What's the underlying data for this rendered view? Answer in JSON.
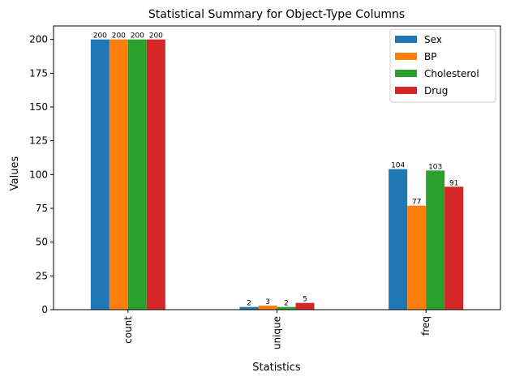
{
  "chart_data": {
    "type": "bar",
    "title": "Statistical Summary for Object-Type Columns",
    "xlabel": "Statistics",
    "ylabel": "Values",
    "categories": [
      "count",
      "unique",
      "freq"
    ],
    "ylim": [
      0,
      210
    ],
    "yticks": [
      0,
      25,
      50,
      75,
      100,
      125,
      150,
      175,
      200
    ],
    "grid": false,
    "legend_position": "top-right",
    "series": [
      {
        "name": "Sex",
        "color": "#1f77b4",
        "values": [
          200,
          2,
          104
        ]
      },
      {
        "name": "BP",
        "color": "#ff7f0e",
        "values": [
          200,
          3,
          77
        ]
      },
      {
        "name": "Cholesterol",
        "color": "#2ca02c",
        "values": [
          200,
          2,
          103
        ]
      },
      {
        "name": "Drug",
        "color": "#d62728",
        "values": [
          200,
          5,
          91
        ]
      }
    ]
  }
}
